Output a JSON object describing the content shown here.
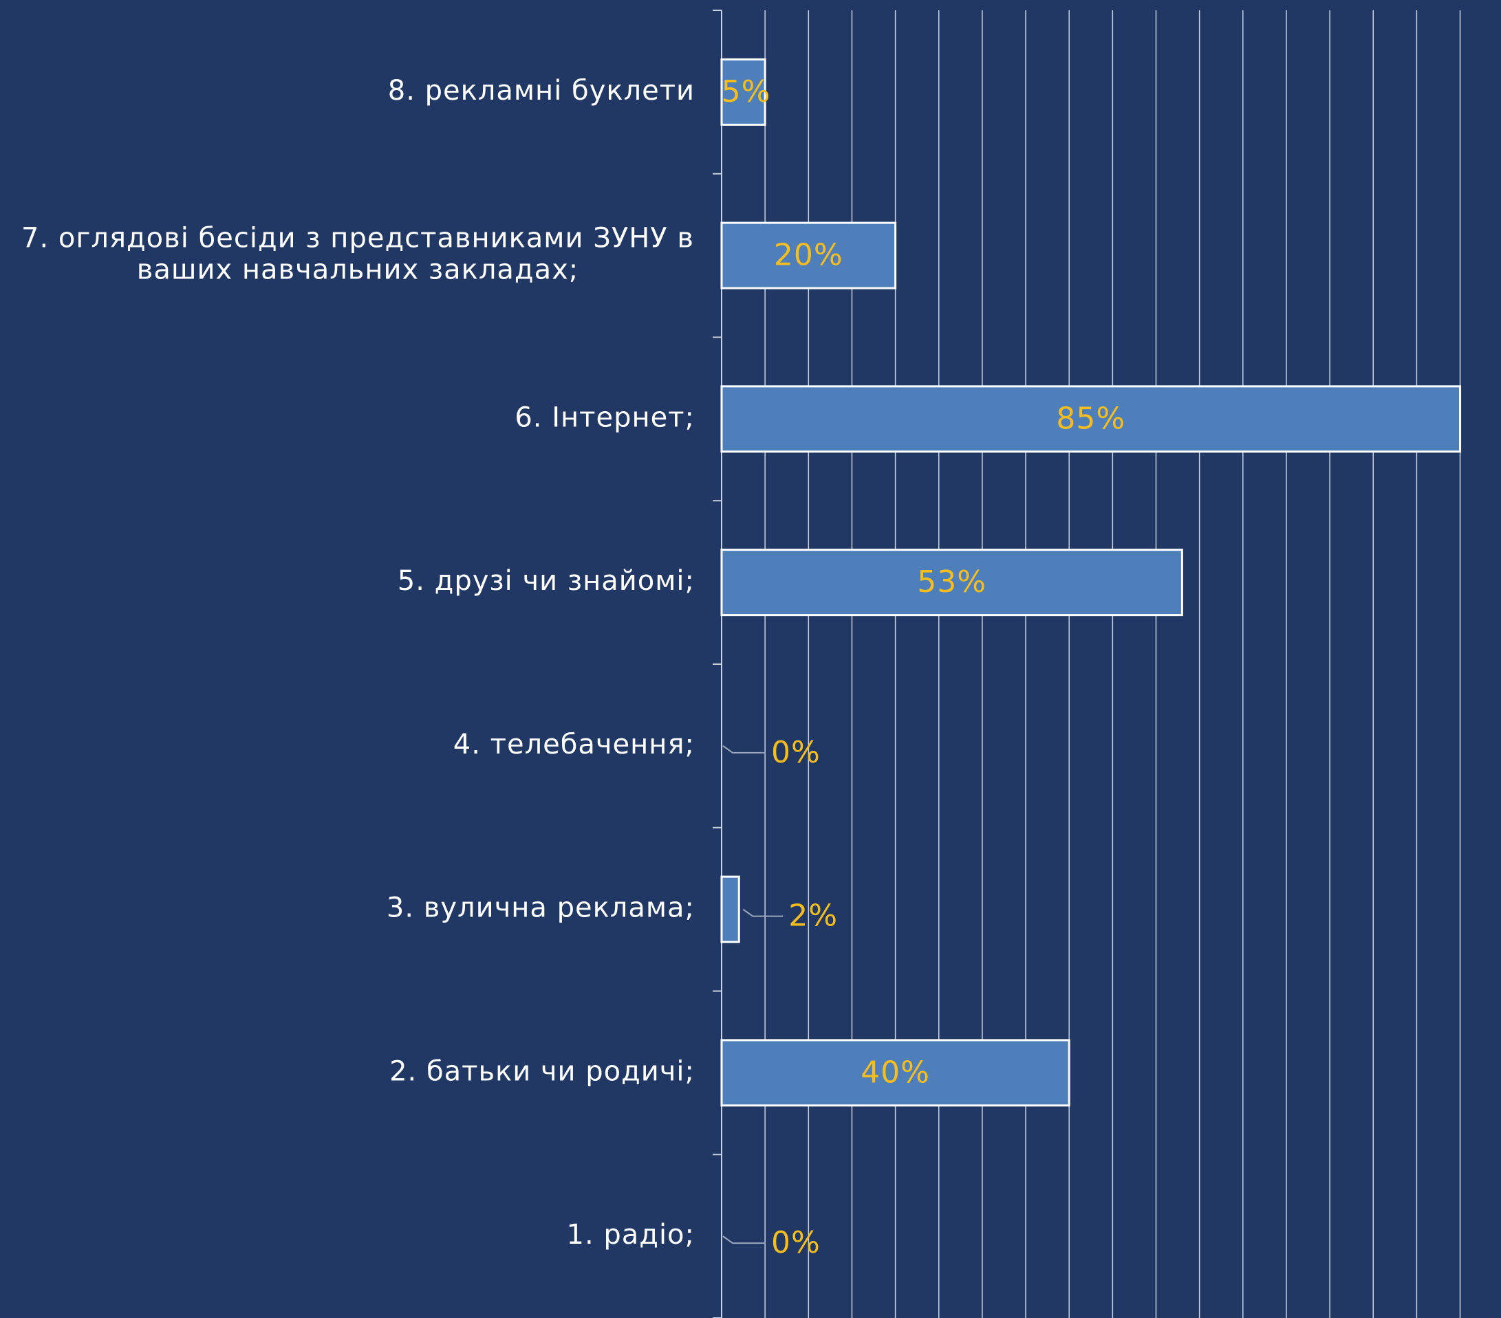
{
  "chart_data": {
    "type": "bar",
    "orientation": "horizontal",
    "categories": [
      "8. рекламні буклети",
      "7. оглядові бесіди з представниками ЗУНУ в ваших навчальних закладах;",
      "6. Інтернет;",
      "5. друзі чи знайомі;",
      "4. телебачення;",
      "3. вулична реклама;",
      "2. батьки чи родичі;",
      "1. радіо;"
    ],
    "category_lines": [
      [
        "8. рекламні буклети"
      ],
      [
        "7. оглядові бесіди з представниками ЗУНУ в",
        "ваших навчальних закладах;"
      ],
      [
        "6. Інтернет;"
      ],
      [
        "5. друзі чи знайомі;"
      ],
      [
        "4. телебачення;"
      ],
      [
        "3. вулична реклама;"
      ],
      [
        "2. батьки чи родичі;"
      ],
      [
        "1. радіо;"
      ]
    ],
    "values": [
      5,
      20,
      85,
      53,
      0,
      2,
      40,
      0
    ],
    "value_labels": [
      "5%",
      "20%",
      "85%",
      "53%",
      "0%",
      "2%",
      "40%",
      "0%"
    ],
    "xlim": [
      0,
      90
    ],
    "grid": true,
    "x_tick_labels_shown": false,
    "colors": {
      "background": "#213864",
      "bar_fill": "#4f7fbb",
      "bar_stroke": "#ffffff",
      "value_label": "#f5be1e",
      "category_label": "#ffffff",
      "grid": "#c9d2e0"
    }
  }
}
